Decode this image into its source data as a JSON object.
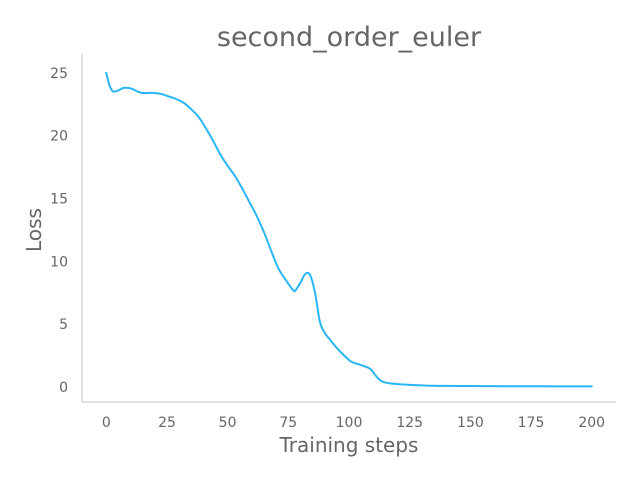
{
  "chart_data": {
    "type": "line",
    "title": "second_order_euler",
    "xlabel": "Training steps",
    "ylabel": "Loss",
    "xlim": [
      -10,
      210
    ],
    "ylim": [
      -1.2,
      26.5
    ],
    "xticks": [
      0,
      25,
      50,
      75,
      100,
      125,
      150,
      175,
      200
    ],
    "yticks": [
      0,
      5,
      10,
      15,
      20,
      25
    ],
    "grid": false,
    "colors": {
      "line": "#29B6F6",
      "axis": "#CCCCCC",
      "text": "#666666"
    },
    "series": [
      {
        "x": [
          0,
          1,
          2,
          3,
          5,
          7,
          9,
          11,
          13,
          15,
          17,
          20,
          23,
          26,
          29,
          32,
          35,
          38,
          41,
          44,
          47,
          50,
          53,
          56,
          59,
          62,
          65,
          68,
          71,
          74,
          77,
          78,
          80,
          82,
          84,
          86,
          88,
          90,
          92,
          95,
          98,
          101,
          104,
          107,
          109,
          111,
          113,
          115,
          117,
          120,
          125,
          130,
          135,
          140,
          150,
          160,
          170,
          180,
          190,
          200
        ],
        "y": [
          25.0,
          24.2,
          23.7,
          23.5,
          23.6,
          23.8,
          23.8,
          23.7,
          23.5,
          23.4,
          23.4,
          23.4,
          23.3,
          23.1,
          22.9,
          22.6,
          22.1,
          21.5,
          20.6,
          19.6,
          18.5,
          17.6,
          16.8,
          15.8,
          14.7,
          13.6,
          12.3,
          10.8,
          9.4,
          8.5,
          7.7,
          7.7,
          8.3,
          9.0,
          8.9,
          7.5,
          5.2,
          4.3,
          3.8,
          3.1,
          2.5,
          2.0,
          1.8,
          1.6,
          1.4,
          0.9,
          0.5,
          0.35,
          0.28,
          0.22,
          0.16,
          0.12,
          0.09,
          0.08,
          0.07,
          0.06,
          0.05,
          0.05,
          0.04,
          0.04
        ]
      }
    ]
  }
}
